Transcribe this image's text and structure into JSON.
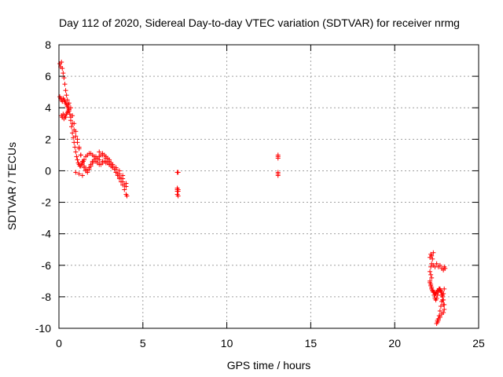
{
  "chart_data": {
    "type": "scatter",
    "title": "Day 112 of 2020, Sidereal Day-to-day VTEC variation (SDTVAR) for receiver nrmg",
    "xlabel": "GPS time / hours",
    "ylabel": "SDTVAR / TECUs",
    "xlim": [
      0,
      25
    ],
    "ylim": [
      -10,
      8
    ],
    "xticks": [
      0,
      5,
      10,
      15,
      20,
      25
    ],
    "yticks": [
      -10,
      -8,
      -6,
      -4,
      -2,
      0,
      2,
      4,
      6,
      8
    ],
    "grid": true,
    "marker": "+",
    "series": [
      {
        "name": "SDTVAR",
        "color": "#ff0000",
        "x": [
          0.05,
          0.1,
          0.15,
          0.2,
          0.25,
          0.3,
          0.35,
          0.4,
          0.45,
          0.5,
          0.55,
          0.6,
          0.65,
          0.7,
          0.75,
          0.8,
          0.85,
          0.9,
          0.95,
          1.0,
          1.05,
          1.1,
          1.15,
          1.2,
          1.25,
          1.3,
          1.35,
          1.4,
          1.45,
          1.5,
          1.6,
          1.7,
          1.8,
          1.9,
          2.0,
          2.1,
          2.2,
          2.3,
          2.4,
          2.5,
          2.6,
          2.7,
          2.8,
          2.9,
          3.0,
          3.1,
          3.2,
          3.3,
          3.4,
          3.5,
          3.6,
          3.7,
          3.8,
          3.9,
          4.0,
          4.05,
          0.05,
          0.1,
          0.15,
          0.2,
          0.25,
          0.3,
          0.35,
          0.4,
          0.45,
          0.5,
          0.55,
          0.6,
          0.7,
          0.8,
          0.9,
          1.0,
          1.1,
          1.2,
          1.3,
          1.4,
          1.5,
          1.6,
          1.7,
          1.8,
          1.9,
          2.0,
          2.2,
          2.4,
          2.6,
          2.8,
          3.0,
          3.2,
          3.4,
          3.6,
          3.8,
          4.0,
          0.15,
          0.2,
          0.25,
          0.3,
          0.35,
          0.4,
          0.45,
          0.5,
          0.55,
          0.6,
          1.0,
          1.2,
          1.4,
          1.6,
          1.8,
          2.0,
          2.1,
          2.2,
          2.3,
          2.4,
          2.5,
          2.6,
          2.7,
          2.8,
          2.9,
          3.0,
          3.1,
          3.2,
          3.3,
          3.4,
          3.5,
          3.6,
          3.7,
          3.8,
          3.9,
          4.0,
          0.6,
          0.7,
          0.8,
          0.9,
          1.0,
          1.1,
          1.2,
          1.3,
          1.4,
          1.5,
          1.6,
          1.7,
          1.8,
          1.9,
          2.0,
          2.2,
          2.4,
          2.6,
          2.8,
          3.0,
          3.2,
          3.4,
          3.6,
          3.8,
          7.05,
          7.05,
          7.05,
          7.05,
          7.05,
          7.1,
          7.1,
          7.1,
          7.1,
          13.05,
          13.05,
          13.05,
          13.05,
          13.05,
          13.05,
          22.1,
          22.15,
          22.2,
          22.25,
          22.3,
          22.2,
          22.15,
          22.1,
          22.15,
          22.2,
          22.3,
          22.4,
          22.5,
          22.6,
          22.7,
          22.8,
          22.9,
          22.95,
          23.0,
          22.95,
          22.9,
          22.85,
          22.8,
          22.75,
          22.7,
          22.65,
          22.6,
          22.55,
          22.5,
          22.55,
          22.6,
          22.7,
          22.8,
          22.9,
          22.95,
          22.9,
          22.85,
          22.8,
          22.75,
          22.7,
          22.65,
          22.6,
          22.55,
          22.5,
          22.45,
          22.4,
          22.35,
          22.3,
          22.25,
          22.2,
          22.15,
          22.1,
          22.1,
          22.15,
          22.2,
          22.25,
          22.3,
          22.35,
          22.4,
          22.45,
          22.5,
          22.55,
          22.6,
          22.65,
          22.7,
          22.75,
          22.8,
          22.85,
          22.9,
          22.95
        ],
        "y": [
          6.8,
          6.6,
          6.9,
          6.5,
          6.2,
          5.9,
          5.5,
          5.1,
          4.8,
          4.5,
          4.2,
          3.9,
          3.6,
          3.2,
          2.8,
          2.4,
          2.1,
          1.8,
          1.5,
          1.2,
          0.9,
          0.7,
          0.5,
          0.4,
          0.3,
          0.3,
          0.4,
          0.5,
          0.6,
          0.7,
          0.9,
          1.0,
          1.1,
          1.1,
          1.0,
          0.9,
          0.8,
          0.8,
          0.9,
          1.0,
          1.1,
          1.0,
          0.9,
          0.8,
          0.7,
          0.5,
          0.3,
          0.1,
          -0.1,
          -0.3,
          -0.5,
          -0.7,
          -0.9,
          -1.2,
          -1.5,
          -1.6,
          4.7,
          4.6,
          4.5,
          4.4,
          4.6,
          4.5,
          4.4,
          4.3,
          4.2,
          4.1,
          4.0,
          3.8,
          3.4,
          3.0,
          2.6,
          2.2,
          1.8,
          1.4,
          1.0,
          0.6,
          0.3,
          0.1,
          0.0,
          0.2,
          0.4,
          0.6,
          0.8,
          0.7,
          0.6,
          0.5,
          0.4,
          0.3,
          0.1,
          -0.2,
          -0.5,
          -0.8,
          3.5,
          3.4,
          3.6,
          3.3,
          3.5,
          3.4,
          3.6,
          3.7,
          3.8,
          3.9,
          -0.1,
          -0.2,
          -0.3,
          0.0,
          0.2,
          0.5,
          0.7,
          0.6,
          0.5,
          0.4,
          0.4,
          0.5,
          0.6,
          0.6,
          0.5,
          0.4,
          0.3,
          0.2,
          0.1,
          -0.1,
          -0.2,
          -0.4,
          -0.5,
          -0.7,
          -0.9,
          -1.0,
          4.3,
          4.0,
          3.5,
          3.0,
          2.5,
          2.0,
          1.5,
          1.0,
          0.5,
          0.2,
          0.0,
          -0.1,
          0.1,
          0.3,
          0.5,
          0.9,
          1.2,
          1.0,
          0.8,
          0.6,
          0.4,
          0.2,
          0.0,
          -0.3,
          -0.1,
          -1.1,
          -1.2,
          -1.3,
          -1.5,
          -0.1,
          -1.2,
          -1.3,
          -1.6,
          0.8,
          1.0,
          0.9,
          -0.1,
          -0.2,
          -0.3,
          -5.5,
          -5.3,
          -5.4,
          -5.6,
          -5.2,
          -5.9,
          -6.1,
          -6.4,
          -6.6,
          -6.8,
          -6.0,
          -6.1,
          -5.9,
          -6.1,
          -6.0,
          -6.2,
          -6.3,
          -6.1,
          -6.2,
          -7.5,
          -7.8,
          -8.0,
          -8.3,
          -8.6,
          -8.9,
          -9.2,
          -9.5,
          -9.6,
          -9.7,
          -9.5,
          -9.4,
          -9.3,
          -9.1,
          -9.0,
          -8.8,
          -8.5,
          -8.2,
          -7.9,
          -7.7,
          -7.6,
          -7.5,
          -7.7,
          -7.9,
          -8.1,
          -8.2,
          -8.1,
          -7.9,
          -7.7,
          -7.6,
          -7.4,
          -7.2,
          -7.0,
          -7.1,
          -7.3,
          -7.5,
          -7.6,
          -7.7,
          -7.7,
          -7.8,
          -7.8,
          -7.7,
          -7.6,
          -7.6,
          -7.5,
          -7.5,
          -7.6,
          -7.7,
          -7.9,
          -8.2,
          -8.5
        ]
      }
    ]
  }
}
